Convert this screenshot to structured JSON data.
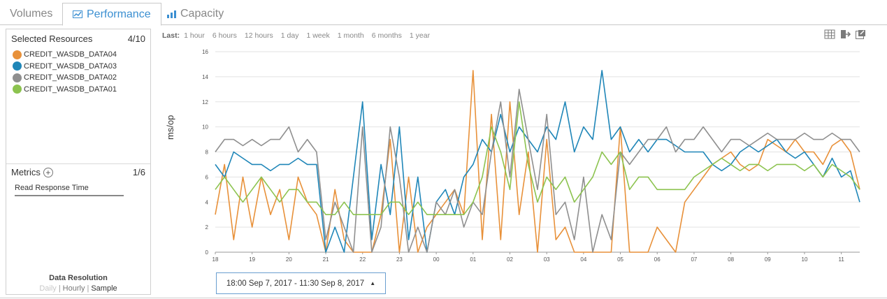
{
  "tabs": [
    {
      "label": "Volumes"
    },
    {
      "label": "Performance"
    },
    {
      "label": "Capacity"
    }
  ],
  "resources": {
    "title": "Selected Resources",
    "count": "4/10",
    "items": [
      {
        "name": "CREDIT_WASDB_DATA04",
        "color": "#e8913a"
      },
      {
        "name": "CREDIT_WASDB_DATA03",
        "color": "#1f86b8"
      },
      {
        "name": "CREDIT_WASDB_DATA02",
        "color": "#8f8f8f"
      },
      {
        "name": "CREDIT_WASDB_DATA01",
        "color": "#8cc34f"
      }
    ]
  },
  "metrics": {
    "title": "Metrics",
    "count": "1/6",
    "item": "Read Response Time"
  },
  "resolution": {
    "title": "Data Resolution",
    "options": [
      "Daily",
      "Hourly",
      "Sample"
    ]
  },
  "range": {
    "label": "Last:",
    "options": [
      "1 hour",
      "6 hours",
      "12 hours",
      "1 day",
      "1 week",
      "1 month",
      "6 months",
      "1 year"
    ]
  },
  "toolbar": {
    "icons": [
      "table-icon",
      "export-icon",
      "popout-icon"
    ]
  },
  "date_range": "18:00 Sep 7, 2017 - 11:30 Sep 8, 2017",
  "chart_data": {
    "type": "line",
    "title": "",
    "xlabel": "",
    "ylabel": "ms/op",
    "ylim": [
      0,
      16
    ],
    "yticks": [
      "0",
      "2",
      "4",
      "6",
      "8",
      "10",
      "12",
      "14",
      "16"
    ],
    "xlim": [
      18,
      35.5
    ],
    "x_ticks": [
      {
        "v": 18,
        "label": "18"
      },
      {
        "v": 19,
        "label": "19"
      },
      {
        "v": 20,
        "label": "20"
      },
      {
        "v": 21,
        "label": "21"
      },
      {
        "v": 22,
        "label": "22"
      },
      {
        "v": 23,
        "label": "23"
      },
      {
        "v": 24,
        "label": "00"
      },
      {
        "v": 25,
        "label": "01"
      },
      {
        "v": 26,
        "label": "02"
      },
      {
        "v": 27,
        "label": "03"
      },
      {
        "v": 28,
        "label": "04"
      },
      {
        "v": 29,
        "label": "05"
      },
      {
        "v": 30,
        "label": "06"
      },
      {
        "v": 31,
        "label": "07"
      },
      {
        "v": 32,
        "label": "08"
      },
      {
        "v": 33,
        "label": "09"
      },
      {
        "v": 34,
        "label": "10"
      },
      {
        "v": 35,
        "label": "11"
      }
    ],
    "grid": true,
    "series": [
      {
        "name": "CREDIT_WASDB_DATA04",
        "color": "#e8913a",
        "x": [
          18.0,
          18.25,
          18.5,
          18.75,
          19.0,
          19.25,
          19.5,
          19.75,
          20.0,
          20.25,
          20.5,
          20.75,
          21.0,
          21.25,
          21.5,
          21.75,
          22.0,
          22.25,
          22.5,
          22.75,
          23.0,
          23.25,
          23.5,
          23.75,
          24.0,
          24.25,
          24.5,
          24.75,
          25.0,
          25.25,
          25.5,
          25.75,
          26.0,
          26.25,
          26.5,
          26.75,
          27.0,
          27.25,
          27.5,
          27.75,
          28.0,
          28.25,
          28.5,
          28.75,
          29.0,
          29.25,
          29.5,
          29.75,
          30.0,
          30.25,
          30.5,
          30.75,
          31.0,
          31.25,
          31.5,
          31.75,
          32.0,
          32.25,
          32.5,
          32.75,
          33.0,
          33.25,
          33.5,
          33.75,
          34.0,
          34.25,
          34.5,
          34.75,
          35.0,
          35.25,
          35.5
        ],
        "values": [
          3,
          7,
          1,
          6,
          2,
          6,
          3,
          5,
          1,
          6,
          4,
          3,
          0,
          5,
          1,
          0,
          0,
          0,
          3,
          9,
          0,
          6,
          0,
          2,
          3,
          4,
          5,
          3,
          14.5,
          1,
          11,
          1,
          12,
          3,
          8,
          0,
          9,
          1,
          2,
          0,
          0,
          0,
          0,
          0,
          10,
          0,
          0,
          0,
          2,
          1,
          0,
          4,
          5,
          6,
          7,
          7.5,
          8,
          7,
          6.5,
          7,
          9,
          8.5,
          8,
          9,
          8,
          8,
          7,
          8.5,
          9,
          8,
          5
        ]
      },
      {
        "name": "CREDIT_WASDB_DATA03",
        "color": "#1f86b8",
        "x": [
          18.0,
          18.25,
          18.5,
          18.75,
          19.0,
          19.25,
          19.5,
          19.75,
          20.0,
          20.25,
          20.5,
          20.75,
          21.0,
          21.25,
          21.5,
          21.75,
          22.0,
          22.25,
          22.5,
          22.75,
          23.0,
          23.25,
          23.5,
          23.75,
          24.0,
          24.25,
          24.5,
          24.75,
          25.0,
          25.25,
          25.5,
          25.75,
          26.0,
          26.25,
          26.5,
          26.75,
          27.0,
          27.25,
          27.5,
          27.75,
          28.0,
          28.25,
          28.5,
          28.75,
          29.0,
          29.25,
          29.5,
          29.75,
          30.0,
          30.25,
          30.5,
          30.75,
          31.0,
          31.25,
          31.5,
          31.75,
          32.0,
          32.25,
          32.5,
          32.75,
          33.0,
          33.25,
          33.5,
          33.75,
          34.0,
          34.25,
          34.5,
          34.75,
          35.0,
          35.25,
          35.5
        ],
        "values": [
          7,
          6,
          8,
          7.5,
          7,
          7,
          6.5,
          7,
          7,
          7.5,
          7,
          7,
          0,
          2,
          0,
          6,
          12,
          1,
          7,
          3,
          10,
          1,
          6,
          0,
          4,
          5,
          3,
          6,
          7,
          9,
          8,
          11,
          8,
          10,
          9,
          8,
          10,
          9,
          12,
          8,
          10,
          9,
          14.5,
          9,
          10,
          8,
          9,
          8,
          9,
          9,
          8.5,
          8,
          8,
          8,
          7,
          6.5,
          7,
          8,
          8.5,
          8,
          8.5,
          9,
          8,
          7.5,
          8,
          7,
          6,
          7.5,
          6,
          6.5,
          4
        ]
      },
      {
        "name": "CREDIT_WASDB_DATA02",
        "color": "#8f8f8f",
        "x": [
          18.0,
          18.25,
          18.5,
          18.75,
          19.0,
          19.25,
          19.5,
          19.75,
          20.0,
          20.25,
          20.5,
          20.75,
          21.0,
          21.25,
          21.5,
          21.75,
          22.0,
          22.25,
          22.5,
          22.75,
          23.0,
          23.25,
          23.5,
          23.75,
          24.0,
          24.25,
          24.5,
          24.75,
          25.0,
          25.25,
          25.5,
          25.75,
          26.0,
          26.25,
          26.5,
          26.75,
          27.0,
          27.25,
          27.5,
          27.75,
          28.0,
          28.25,
          28.5,
          28.75,
          29.0,
          29.25,
          29.5,
          29.75,
          30.0,
          30.25,
          30.5,
          30.75,
          31.0,
          31.25,
          31.5,
          31.75,
          32.0,
          32.25,
          32.5,
          32.75,
          33.0,
          33.25,
          33.5,
          33.75,
          34.0,
          34.25,
          34.5,
          34.75,
          35.0,
          35.25,
          35.5
        ],
        "values": [
          8,
          9,
          9,
          8.5,
          9,
          8.5,
          9,
          9,
          10,
          8,
          9,
          8,
          1,
          4,
          2,
          0,
          10,
          0,
          2,
          10,
          6,
          0,
          2,
          0,
          4,
          3,
          5,
          2,
          4,
          3,
          8,
          12,
          6,
          13,
          9,
          5,
          11,
          3,
          4,
          1,
          6,
          0,
          3,
          1,
          8,
          7,
          8,
          9,
          9,
          10,
          8,
          9,
          9,
          10,
          9,
          8,
          9,
          9,
          8.5,
          9,
          9.5,
          9,
          9,
          9,
          9.5,
          9,
          9,
          9.5,
          9,
          9,
          8
        ]
      },
      {
        "name": "CREDIT_WASDB_DATA01",
        "color": "#8cc34f",
        "x": [
          18.0,
          18.25,
          18.5,
          18.75,
          19.0,
          19.25,
          19.5,
          19.75,
          20.0,
          20.25,
          20.5,
          20.75,
          21.0,
          21.25,
          21.5,
          21.75,
          22.0,
          22.25,
          22.5,
          22.75,
          23.0,
          23.25,
          23.5,
          23.75,
          24.0,
          24.25,
          24.5,
          24.75,
          25.0,
          25.25,
          25.5,
          25.75,
          26.0,
          26.25,
          26.5,
          26.75,
          27.0,
          27.25,
          27.5,
          27.75,
          28.0,
          28.25,
          28.5,
          28.75,
          29.0,
          29.25,
          29.5,
          29.75,
          30.0,
          30.25,
          30.5,
          30.75,
          31.0,
          31.25,
          31.5,
          31.75,
          32.0,
          32.25,
          32.5,
          32.75,
          33.0,
          33.25,
          33.5,
          33.75,
          34.0,
          34.25,
          34.5,
          34.75,
          35.0,
          35.25,
          35.5
        ],
        "values": [
          5,
          6,
          5,
          4,
          5,
          6,
          5,
          4,
          5,
          5,
          4,
          4,
          3,
          3,
          4,
          3,
          3,
          3,
          3,
          4,
          4,
          3,
          4,
          3,
          3,
          3,
          3,
          3,
          4,
          6,
          10,
          8,
          5,
          12,
          7,
          4,
          6,
          5,
          6,
          4,
          5,
          6,
          8,
          7,
          8,
          5,
          6,
          6,
          5,
          5,
          5,
          5,
          6,
          6.5,
          7,
          7.5,
          7,
          6.5,
          7,
          7,
          6.5,
          7,
          7,
          7,
          6.5,
          7,
          6,
          7,
          6.5,
          6,
          5
        ]
      }
    ]
  }
}
